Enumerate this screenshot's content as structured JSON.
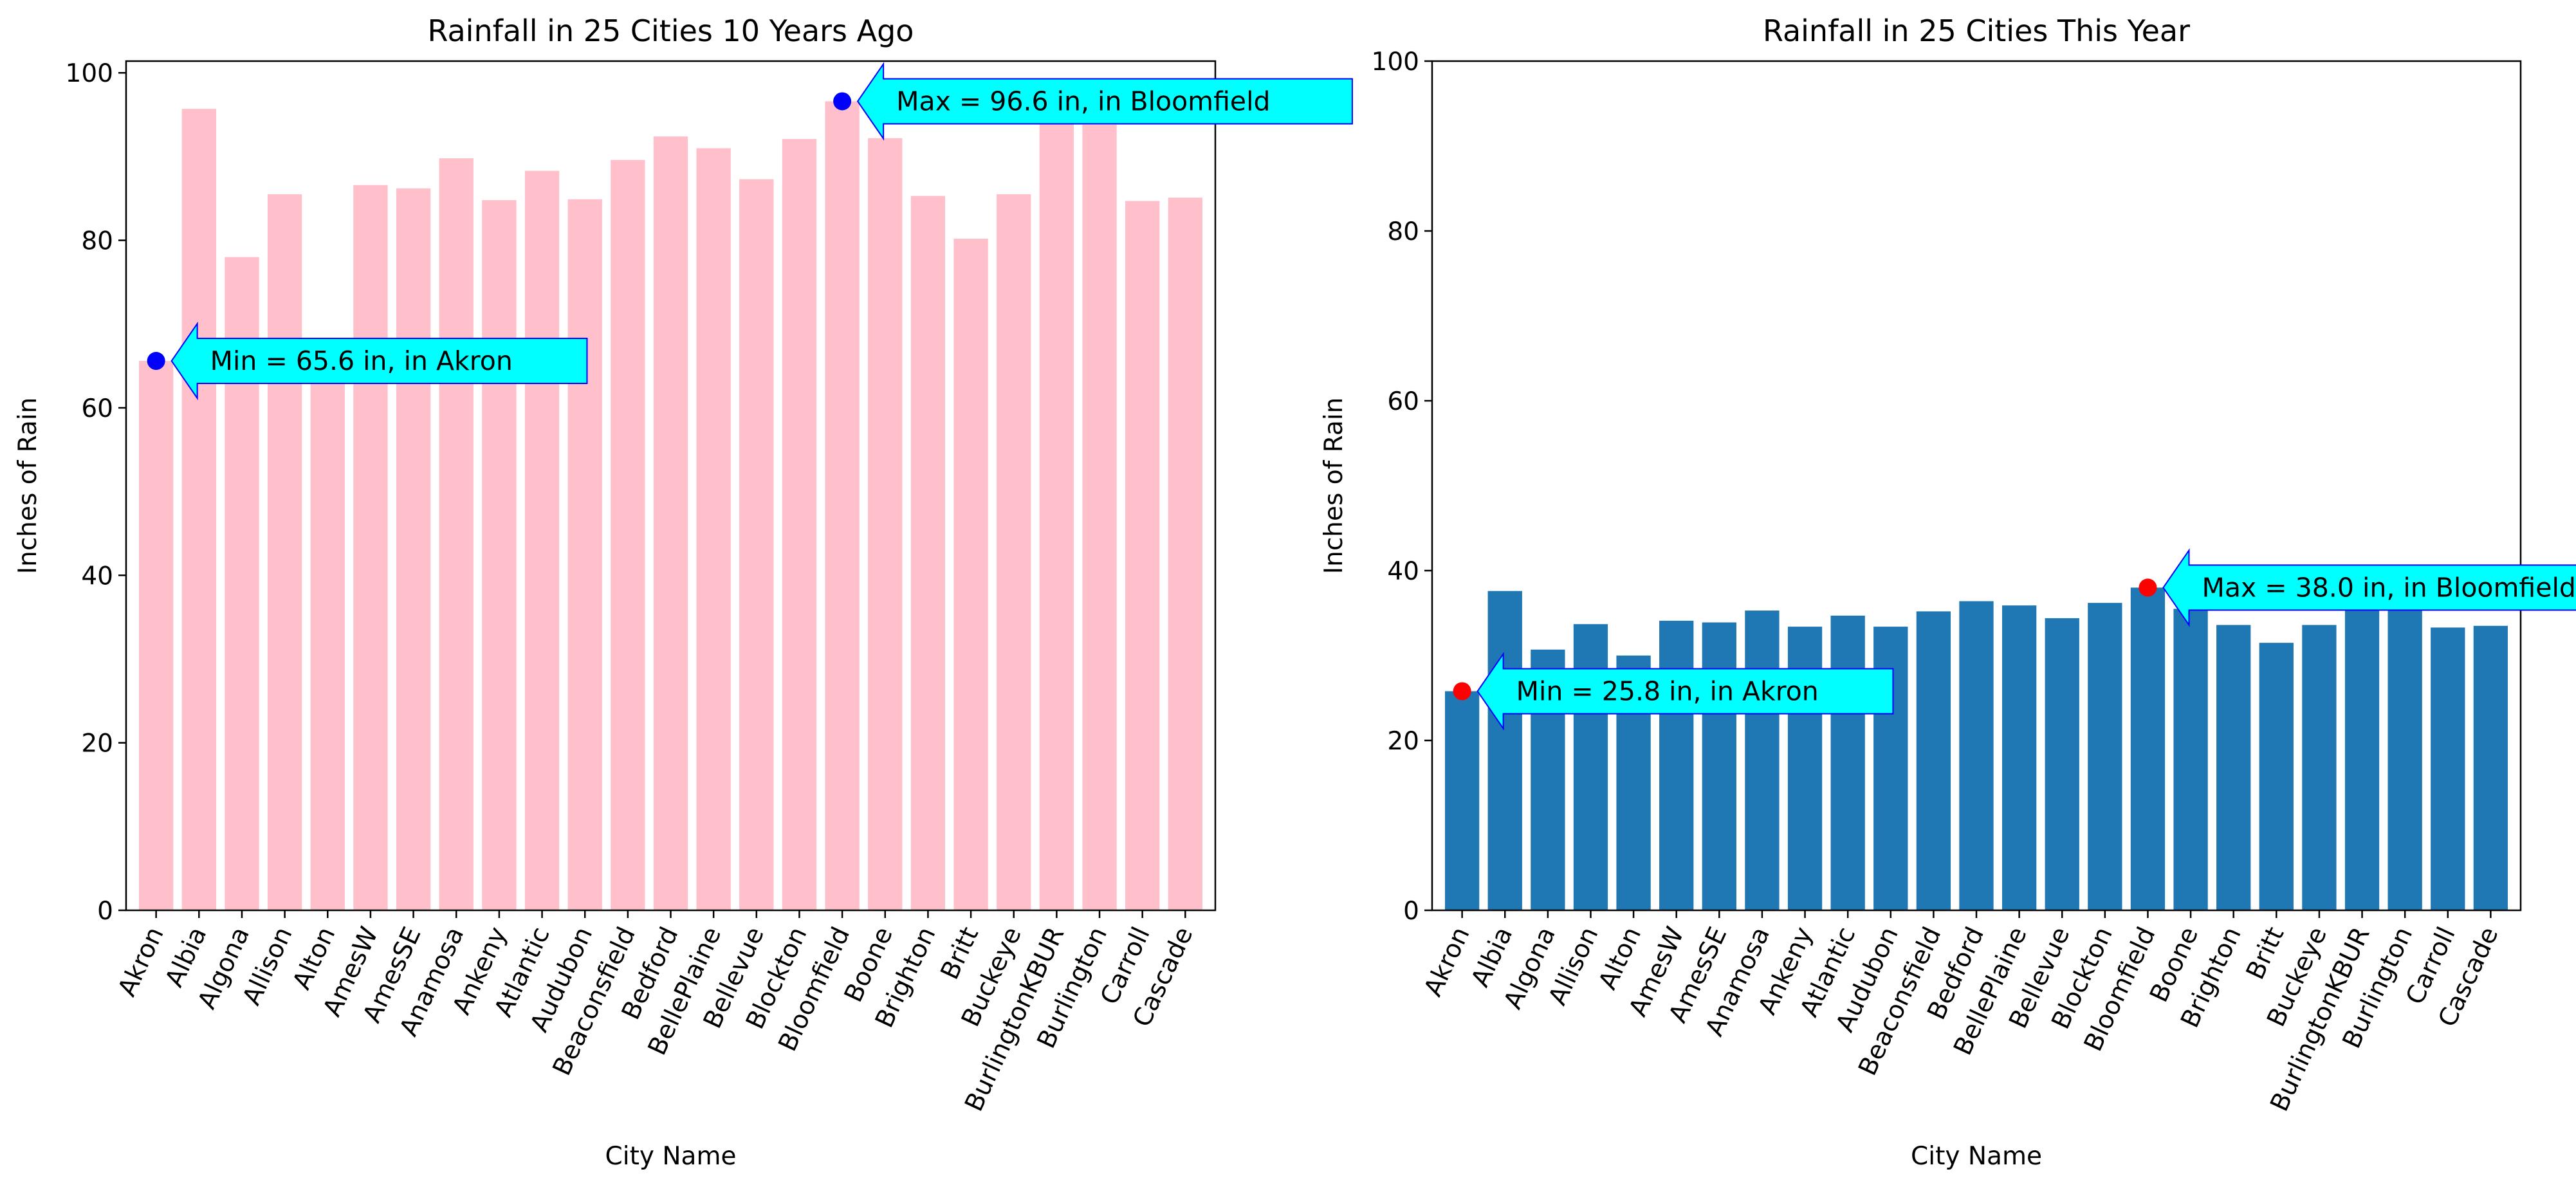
{
  "chart_data": [
    {
      "type": "bar",
      "title": "Rainfall in 25 Cities 10 Years Ago",
      "xlabel": "City Name",
      "ylabel": "Inches of Rain",
      "ylim": [
        0,
        101.4
      ],
      "yticks": [
        0,
        20,
        40,
        60,
        80,
        100
      ],
      "bar_color": "#ffc0cb",
      "marker_color": "#0000ff",
      "categories": [
        "Akron",
        "Albia",
        "Algona",
        "Allison",
        "Alton",
        "AmesW",
        "AmesSE",
        "Anamosa",
        "Ankeny",
        "Atlantic",
        "Audubon",
        "Beaconsfield",
        "Bedford",
        "BellePlaine",
        "Bellevue",
        "Blockton",
        "Bloomfield",
        "Boone",
        "Brighton",
        "Britt",
        "Buckeye",
        "BurlingtonKBUR",
        "Burlington",
        "Carroll",
        "Cascade"
      ],
      "values": [
        65.6,
        95.7,
        78.0,
        85.5,
        66.0,
        86.6,
        86.2,
        89.8,
        84.8,
        88.3,
        84.9,
        89.6,
        92.4,
        91.0,
        87.3,
        92.1,
        96.6,
        92.2,
        85.3,
        80.2,
        85.5,
        95.0,
        93.8,
        84.7,
        85.1
      ],
      "annotations": [
        {
          "label": "Min = 65.6 in, in Akron",
          "index": 0,
          "value": 65.6
        },
        {
          "label": "Max = 96.6 in, in Bloomfield",
          "index": 16,
          "value": 96.6
        }
      ]
    },
    {
      "type": "bar",
      "title": "Rainfall in 25 Cities This Year",
      "xlabel": "City Name",
      "ylabel": "Inches of Rain",
      "ylim": [
        0,
        100
      ],
      "yticks": [
        0,
        20,
        40,
        60,
        80,
        100
      ],
      "bar_color": "#1f77b4",
      "marker_color": "#ff0000",
      "categories": [
        "Akron",
        "Albia",
        "Algona",
        "Allison",
        "Alton",
        "AmesW",
        "AmesSE",
        "Anamosa",
        "Ankeny",
        "Atlantic",
        "Audubon",
        "Beaconsfield",
        "Bedford",
        "BellePlaine",
        "Bellevue",
        "Blockton",
        "Bloomfield",
        "Boone",
        "Brighton",
        "Britt",
        "Buckeye",
        "BurlingtonKBUR",
        "Burlington",
        "Carroll",
        "Cascade"
      ],
      "values": [
        25.8,
        37.6,
        30.7,
        33.7,
        30.0,
        34.1,
        33.9,
        35.3,
        33.4,
        34.7,
        33.4,
        35.2,
        36.4,
        35.9,
        34.4,
        36.2,
        38.0,
        35.5,
        33.6,
        31.5,
        33.6,
        37.0,
        36.8,
        33.3,
        33.5
      ],
      "annotations": [
        {
          "label": "Min = 25.8 in, in Akron",
          "index": 0,
          "value": 25.8
        },
        {
          "label": "Max = 38.0 in, in Bloomfield",
          "index": 16,
          "value": 38.0
        }
      ]
    }
  ]
}
